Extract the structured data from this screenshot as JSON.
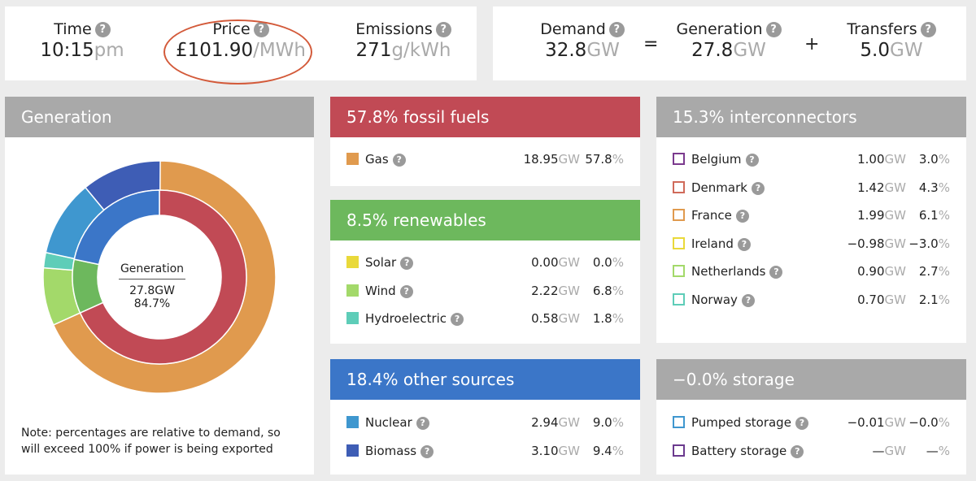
{
  "top": {
    "time": {
      "label": "Time",
      "value": "10:15",
      "unit": "pm"
    },
    "price": {
      "label": "Price",
      "value": "£101.90",
      "unit": "/MWh"
    },
    "emissions": {
      "label": "Emissions",
      "value": "271",
      "unit": "g/kWh"
    },
    "demand": {
      "label": "Demand",
      "value": "32.8",
      "unit": "GW"
    },
    "generation": {
      "label": "Generation",
      "value": "27.8",
      "unit": "GW"
    },
    "transfers": {
      "label": "Transfers",
      "value": "5.0",
      "unit": "GW"
    },
    "equals": "=",
    "plus": "+"
  },
  "help_glyph": "?",
  "generation_panel": {
    "title": "Generation",
    "center_title": "Generation",
    "center_value": "27.8GW",
    "center_pct": "84.7%",
    "note": "Note: percentages are relative to demand, so will exceed 100% if power is being exported"
  },
  "fossil": {
    "title": "57.8% fossil fuels",
    "color": "#c14a55",
    "rows": [
      {
        "name": "Gas",
        "gw": "18.95",
        "pct": "57.8",
        "color": "#e09a4e"
      }
    ]
  },
  "renewables": {
    "title": "8.5% renewables",
    "color": "#6db85d",
    "rows": [
      {
        "name": "Solar",
        "gw": "0.00",
        "pct": "0.0",
        "color": "#e9d93a"
      },
      {
        "name": "Wind",
        "gw": "2.22",
        "pct": "6.8",
        "color": "#a3d96a"
      },
      {
        "name": "Hydroelectric",
        "gw": "0.58",
        "pct": "1.8",
        "color": "#5ecdb8"
      }
    ]
  },
  "other": {
    "title": "18.4% other sources",
    "color": "#3b76c8",
    "rows": [
      {
        "name": "Nuclear",
        "gw": "2.94",
        "pct": "9.0",
        "color": "#3f97cf"
      },
      {
        "name": "Biomass",
        "gw": "3.10",
        "pct": "9.4",
        "color": "#3e5db5"
      }
    ]
  },
  "interconnectors": {
    "title": "15.3% interconnectors",
    "color": "#a9a9a9",
    "rows": [
      {
        "name": "Belgium",
        "gw": "1.00",
        "pct": "3.0",
        "color": "#7b3a8e"
      },
      {
        "name": "Denmark",
        "gw": "1.42",
        "pct": "4.3",
        "color": "#d06a5a"
      },
      {
        "name": "France",
        "gw": "1.99",
        "pct": "6.1",
        "color": "#e09a4e"
      },
      {
        "name": "Ireland",
        "gw": "−0.98",
        "pct": "−3.0",
        "color": "#e9d93a"
      },
      {
        "name": "Netherlands",
        "gw": "0.90",
        "pct": "2.7",
        "color": "#a3d96a"
      },
      {
        "name": "Norway",
        "gw": "0.70",
        "pct": "2.1",
        "color": "#5ecdb8"
      }
    ]
  },
  "storage": {
    "title": "−0.0% storage",
    "color": "#a9a9a9",
    "rows": [
      {
        "name": "Pumped storage",
        "gw": "−0.01",
        "pct": "−0.0",
        "color": "#3f97cf"
      },
      {
        "name": "Battery storage",
        "gw": "—",
        "pct": "—",
        "color": "#6b3a8e"
      }
    ]
  },
  "units": {
    "gw": "GW",
    "pct": "%"
  },
  "chart_data": {
    "type": "pie",
    "outer_ring": [
      {
        "name": "Gas",
        "value": 57.8,
        "color": "#e09a4e"
      },
      {
        "name": "Wind",
        "value": 6.8,
        "color": "#a3d96a"
      },
      {
        "name": "Hydroelectric",
        "value": 1.8,
        "color": "#5ecdb8"
      },
      {
        "name": "Nuclear",
        "value": 9.0,
        "color": "#3f97cf"
      },
      {
        "name": "Biomass",
        "value": 9.4,
        "color": "#3e5db5"
      }
    ],
    "inner_ring": [
      {
        "name": "fossil fuels",
        "value": 57.8,
        "color": "#c14a55"
      },
      {
        "name": "renewables",
        "value": 8.5,
        "color": "#6db85d"
      },
      {
        "name": "other sources",
        "value": 18.4,
        "color": "#3b76c8"
      }
    ]
  }
}
